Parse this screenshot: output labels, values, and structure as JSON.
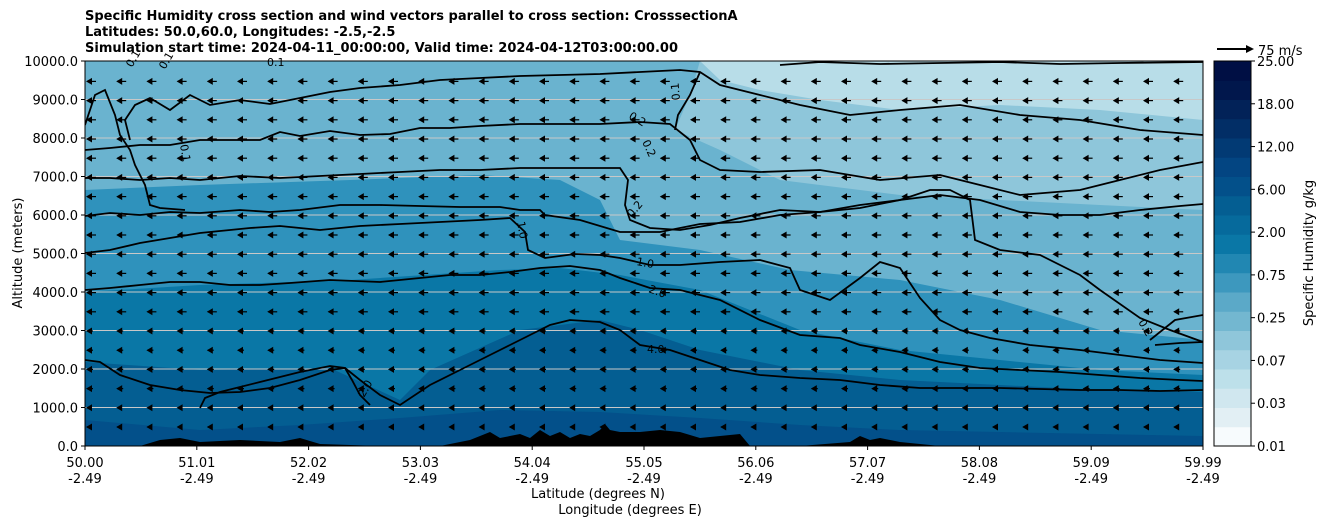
{
  "chart_data": {
    "type": "heatmap",
    "title": [
      "Specific Humidity cross section and wind vectors parallel to cross section: CrosssectionA",
      "Latitudes: 50.0,60.0, Longitudes: -2.5,-2.5",
      "Simulation start time: 2024-04-11_00:00:00, Valid time: 2024-04-12T03:00:00.00"
    ],
    "xlabel_lat": "Latitude (degrees N)",
    "xlabel_lon": "Longitude (degrees E)",
    "ylabel": "Altitude (meters)",
    "ylim": [
      0,
      10000
    ],
    "xlim": [
      50.0,
      59.99
    ],
    "x_ticks": [
      {
        "lat": "50.00",
        "lon": "-2.49"
      },
      {
        "lat": "51.01",
        "lon": "-2.49"
      },
      {
        "lat": "52.02",
        "lon": "-2.49"
      },
      {
        "lat": "53.03",
        "lon": "-2.49"
      },
      {
        "lat": "54.04",
        "lon": "-2.49"
      },
      {
        "lat": "55.05",
        "lon": "-2.49"
      },
      {
        "lat": "56.06",
        "lon": "-2.49"
      },
      {
        "lat": "57.07",
        "lon": "-2.49"
      },
      {
        "lat": "58.08",
        "lon": "-2.49"
      },
      {
        "lat": "59.09",
        "lon": "-2.49"
      },
      {
        "lat": "59.99",
        "lon": "-2.49"
      }
    ],
    "y_ticks": [
      "0.0",
      "1000.0",
      "2000.0",
      "3000.0",
      "4000.0",
      "5000.0",
      "6000.0",
      "7000.0",
      "8000.0",
      "9000.0",
      "10000.0"
    ],
    "grid": "horizontal",
    "colorbar": {
      "label": "Specific Humidity g/kg",
      "ticks": [
        "0.01",
        "0.03",
        "0.07",
        "0.25",
        "0.75",
        "2.00",
        "6.00",
        "12.00",
        "18.00",
        "25.00"
      ],
      "colors": [
        "#f7fbfd",
        "#e2eff4",
        "#d0e7ef",
        "#bde0ea",
        "#a7d3e3",
        "#8fc6da",
        "#73b7d0",
        "#5ba9c8",
        "#3d98be",
        "#2187b2",
        "#0a77a6",
        "#066a9c",
        "#045e92",
        "#03508a",
        "#034582",
        "#023a74",
        "#022e66",
        "#022258",
        "#01174c",
        "#000f44"
      ]
    },
    "contour_labels": [
      "0.1",
      "0.2",
      "1.0",
      "2.0",
      "4.0"
    ],
    "quiver_key": {
      "label": "75 m/s"
    },
    "terrain_peaks_m": [
      {
        "lat": 50.8,
        "alt": 180
      },
      {
        "lat": 53.6,
        "alt": 420
      },
      {
        "lat": 54.1,
        "alt": 380
      },
      {
        "lat": 54.7,
        "alt": 600
      },
      {
        "lat": 55.7,
        "alt": 290
      },
      {
        "lat": 57.0,
        "alt": 280
      }
    ],
    "wind": {
      "direction": "southward (toward lower latitude)",
      "typical_speed_ms": 20
    }
  }
}
